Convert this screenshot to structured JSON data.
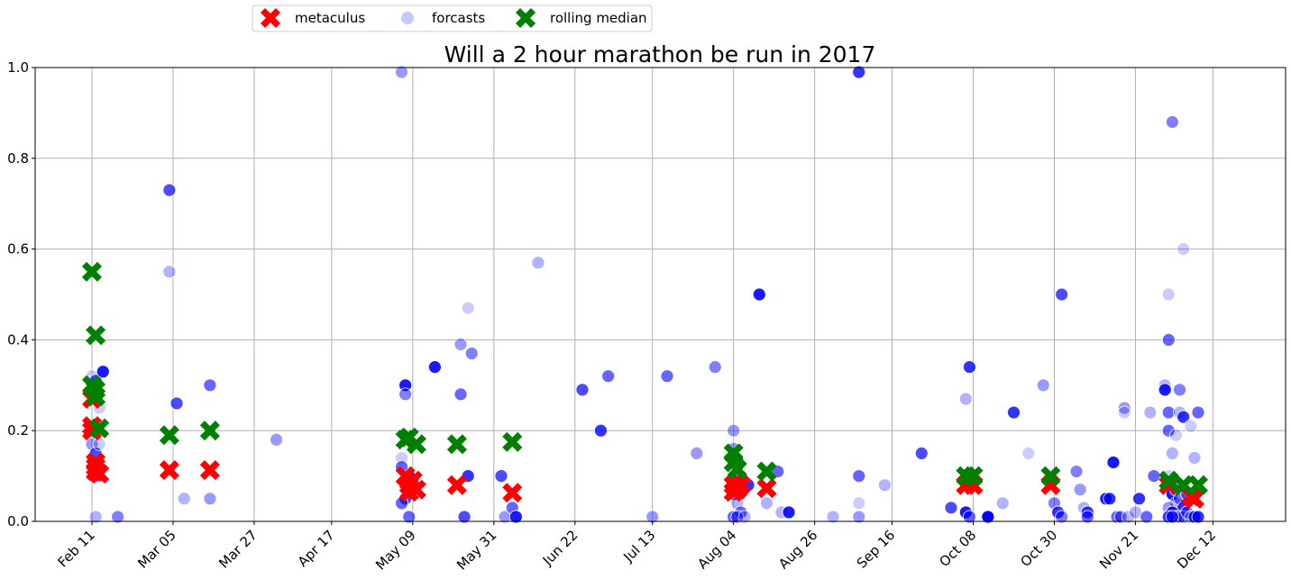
{
  "chart_data": {
    "type": "scatter",
    "title": "Will a 2 hour marathon be run in 2017",
    "xlabel": "",
    "ylabel": "",
    "ylim": [
      0,
      1
    ],
    "y_ticks": [
      "0.0",
      "0.2",
      "0.4",
      "0.6",
      "0.8",
      "1.0"
    ],
    "x_ticks": [
      "Feb 11",
      "Mar 05",
      "Mar 27",
      "Apr 17",
      "May 09",
      "May 31",
      "Jun 22",
      "Jul 13",
      "Aug 04",
      "Aug 26",
      "Sep 16",
      "Oct 08",
      "Oct 30",
      "Nov 21",
      "Dec 12"
    ],
    "grid": true,
    "legend_position": "top-left, above plot",
    "colors": {
      "metaculus": "#ff0000",
      "forecast": "#0000ff",
      "rolling_median": "#008000"
    },
    "legend": [
      {
        "label": "metaculus",
        "marker": "x"
      },
      {
        "label": "forcasts",
        "marker": "circle"
      },
      {
        "label": "rolling median",
        "marker": "x"
      }
    ],
    "series": {
      "metaculus": [
        {
          "x": "Feb 11",
          "y": 0.27
        },
        {
          "x": "Feb 11",
          "y": 0.21
        },
        {
          "x": "Feb 11",
          "y": 0.2
        },
        {
          "x": "Feb 12",
          "y": 0.12
        },
        {
          "x": "Feb 12",
          "y": 0.11
        },
        {
          "x": "Feb 12",
          "y": 0.13
        },
        {
          "x": "Feb 13",
          "y": 0.105
        },
        {
          "x": "Mar 04",
          "y": 0.113
        },
        {
          "x": "Mar 15",
          "y": 0.113
        },
        {
          "x": "May 07",
          "y": 0.1
        },
        {
          "x": "May 08",
          "y": 0.08
        },
        {
          "x": "May 08",
          "y": 0.065
        },
        {
          "x": "May 09",
          "y": 0.09
        },
        {
          "x": "May 10",
          "y": 0.07
        },
        {
          "x": "May 21",
          "y": 0.08
        },
        {
          "x": "Jun 05",
          "y": 0.063
        },
        {
          "x": "Aug 04",
          "y": 0.08
        },
        {
          "x": "Aug 04",
          "y": 0.065
        },
        {
          "x": "Aug 05",
          "y": 0.07
        },
        {
          "x": "Aug 06",
          "y": 0.08
        },
        {
          "x": "Aug 13",
          "y": 0.073
        },
        {
          "x": "Oct 06",
          "y": 0.08
        },
        {
          "x": "Oct 08",
          "y": 0.08
        },
        {
          "x": "Oct 29",
          "y": 0.08
        },
        {
          "x": "Nov 30",
          "y": 0.08
        },
        {
          "x": "Dec 06",
          "y": 0.055
        },
        {
          "x": "Dec 07",
          "y": 0.05
        }
      ],
      "rolling_median": [
        {
          "x": "Feb 11",
          "y": 0.55
        },
        {
          "x": "Feb 12",
          "y": 0.41
        },
        {
          "x": "Feb 11",
          "y": 0.3
        },
        {
          "x": "Feb 12",
          "y": 0.29
        },
        {
          "x": "Feb 12",
          "y": 0.275
        },
        {
          "x": "Feb 13",
          "y": 0.205
        },
        {
          "x": "Mar 04",
          "y": 0.19
        },
        {
          "x": "Mar 15",
          "y": 0.2
        },
        {
          "x": "May 07",
          "y": 0.18
        },
        {
          "x": "May 08",
          "y": 0.185
        },
        {
          "x": "May 10",
          "y": 0.17
        },
        {
          "x": "May 21",
          "y": 0.17
        },
        {
          "x": "Jun 05",
          "y": 0.175
        },
        {
          "x": "Aug 04",
          "y": 0.15
        },
        {
          "x": "Aug 04",
          "y": 0.13
        },
        {
          "x": "Aug 05",
          "y": 0.115
        },
        {
          "x": "Aug 13",
          "y": 0.11
        },
        {
          "x": "Oct 06",
          "y": 0.1
        },
        {
          "x": "Oct 08",
          "y": 0.1
        },
        {
          "x": "Oct 29",
          "y": 0.1
        },
        {
          "x": "Nov 30",
          "y": 0.09
        },
        {
          "x": "Dec 04",
          "y": 0.08
        },
        {
          "x": "Dec 08",
          "y": 0.08
        }
      ],
      "forecasts": [
        {
          "x": "Feb 11",
          "y": 0.32
        },
        {
          "x": "Feb 12",
          "y": 0.31
        },
        {
          "x": "Feb 13",
          "y": 0.25
        },
        {
          "x": "Feb 14",
          "y": 0.33
        },
        {
          "x": "Feb 11",
          "y": 0.17
        },
        {
          "x": "Feb 12",
          "y": 0.15
        },
        {
          "x": "Feb 13",
          "y": 0.17
        },
        {
          "x": "Feb 12",
          "y": 0.1
        },
        {
          "x": "Feb 13",
          "y": 0.1
        },
        {
          "x": "Feb 12",
          "y": 0.01
        },
        {
          "x": "Feb 18",
          "y": 0.01
        },
        {
          "x": "Mar 04",
          "y": 0.73
        },
        {
          "x": "Mar 04",
          "y": 0.55
        },
        {
          "x": "Mar 06",
          "y": 0.26
        },
        {
          "x": "Mar 08",
          "y": 0.05
        },
        {
          "x": "Mar 15",
          "y": 0.05
        },
        {
          "x": "Mar 15",
          "y": 0.3
        },
        {
          "x": "Apr 02",
          "y": 0.18
        },
        {
          "x": "May 06",
          "y": 0.99
        },
        {
          "x": "May 07",
          "y": 0.3
        },
        {
          "x": "May 07",
          "y": 0.28
        },
        {
          "x": "May 06",
          "y": 0.14
        },
        {
          "x": "May 06",
          "y": 0.12
        },
        {
          "x": "May 08",
          "y": 0.1
        },
        {
          "x": "May 09",
          "y": 0.08
        },
        {
          "x": "May 07",
          "y": 0.05
        },
        {
          "x": "May 06",
          "y": 0.04
        },
        {
          "x": "May 08",
          "y": 0.01
        },
        {
          "x": "May 15",
          "y": 0.34
        },
        {
          "x": "May 22",
          "y": 0.39
        },
        {
          "x": "May 22",
          "y": 0.28
        },
        {
          "x": "May 24",
          "y": 0.47
        },
        {
          "x": "May 25",
          "y": 0.37
        },
        {
          "x": "May 24",
          "y": 0.1
        },
        {
          "x": "May 23",
          "y": 0.01
        },
        {
          "x": "Jun 02",
          "y": 0.1
        },
        {
          "x": "Jun 03",
          "y": 0.01
        },
        {
          "x": "Jun 05",
          "y": 0.03
        },
        {
          "x": "Jun 06",
          "y": 0.01
        },
        {
          "x": "Jun 12",
          "y": 0.57
        },
        {
          "x": "Jun 24",
          "y": 0.29
        },
        {
          "x": "Jun 29",
          "y": 0.2
        },
        {
          "x": "Jul 01",
          "y": 0.32
        },
        {
          "x": "Jul 13",
          "y": 0.01
        },
        {
          "x": "Jul 17",
          "y": 0.32
        },
        {
          "x": "Jul 25",
          "y": 0.15
        },
        {
          "x": "Jul 30",
          "y": 0.34
        },
        {
          "x": "Aug 04",
          "y": 0.2
        },
        {
          "x": "Aug 04",
          "y": 0.16
        },
        {
          "x": "Aug 05",
          "y": 0.12
        },
        {
          "x": "Aug 06",
          "y": 0.1
        },
        {
          "x": "Aug 04",
          "y": 0.06
        },
        {
          "x": "Aug 05",
          "y": 0.04
        },
        {
          "x": "Aug 06",
          "y": 0.02
        },
        {
          "x": "Aug 04",
          "y": 0.01
        },
        {
          "x": "Aug 05",
          "y": 0.01
        },
        {
          "x": "Aug 07",
          "y": 0.01
        },
        {
          "x": "Aug 08",
          "y": 0.08
        },
        {
          "x": "Aug 11",
          "y": 0.5
        },
        {
          "x": "Aug 13",
          "y": 0.04
        },
        {
          "x": "Aug 16",
          "y": 0.11
        },
        {
          "x": "Aug 17",
          "y": 0.02
        },
        {
          "x": "Aug 19",
          "y": 0.02
        },
        {
          "x": "Aug 31",
          "y": 0.01
        },
        {
          "x": "Sep 07",
          "y": 0.99
        },
        {
          "x": "Sep 07",
          "y": 0.1
        },
        {
          "x": "Sep 07",
          "y": 0.04
        },
        {
          "x": "Sep 07",
          "y": 0.01
        },
        {
          "x": "Sep 14",
          "y": 0.08
        },
        {
          "x": "Sep 24",
          "y": 0.15
        },
        {
          "x": "Oct 02",
          "y": 0.03
        },
        {
          "x": "Oct 06",
          "y": 0.27
        },
        {
          "x": "Oct 07",
          "y": 0.34
        },
        {
          "x": "Oct 06",
          "y": 0.02
        },
        {
          "x": "Oct 07",
          "y": 0.01
        },
        {
          "x": "Oct 12",
          "y": 0.01
        },
        {
          "x": "Oct 12",
          "y": 0.01
        },
        {
          "x": "Oct 16",
          "y": 0.04
        },
        {
          "x": "Oct 19",
          "y": 0.24
        },
        {
          "x": "Oct 23",
          "y": 0.15
        },
        {
          "x": "Oct 27",
          "y": 0.3
        },
        {
          "x": "Oct 30",
          "y": 0.04
        },
        {
          "x": "Oct 31",
          "y": 0.02
        },
        {
          "x": "Nov 01",
          "y": 0.5
        },
        {
          "x": "Nov 01",
          "y": 0.01
        },
        {
          "x": "Nov 05",
          "y": 0.11
        },
        {
          "x": "Nov 06",
          "y": 0.07
        },
        {
          "x": "Nov 07",
          "y": 0.03
        },
        {
          "x": "Nov 08",
          "y": 0.02
        },
        {
          "x": "Nov 08",
          "y": 0.01
        },
        {
          "x": "Nov 13",
          "y": 0.05
        },
        {
          "x": "Nov 14",
          "y": 0.05
        },
        {
          "x": "Nov 15",
          "y": 0.13
        },
        {
          "x": "Nov 15",
          "y": 0.13
        },
        {
          "x": "Nov 16",
          "y": 0.01
        },
        {
          "x": "Nov 17",
          "y": 0.01
        },
        {
          "x": "Nov 18",
          "y": 0.25
        },
        {
          "x": "Nov 18",
          "y": 0.24
        },
        {
          "x": "Nov 19",
          "y": 0.01
        },
        {
          "x": "Nov 21",
          "y": 0.02
        },
        {
          "x": "Nov 22",
          "y": 0.05
        },
        {
          "x": "Nov 24",
          "y": 0.01
        },
        {
          "x": "Nov 25",
          "y": 0.24
        },
        {
          "x": "Nov 26",
          "y": 0.1
        },
        {
          "x": "Nov 29",
          "y": 0.3
        },
        {
          "x": "Nov 29",
          "y": 0.29
        },
        {
          "x": "Nov 30",
          "y": 0.5
        },
        {
          "x": "Nov 30",
          "y": 0.4
        },
        {
          "x": "Nov 30",
          "y": 0.24
        },
        {
          "x": "Nov 30",
          "y": 0.2
        },
        {
          "x": "Dec 01",
          "y": 0.88
        },
        {
          "x": "Dec 01",
          "y": 0.15
        },
        {
          "x": "Dec 02",
          "y": 0.19
        },
        {
          "x": "Dec 03",
          "y": 0.29
        },
        {
          "x": "Dec 03",
          "y": 0.24
        },
        {
          "x": "Dec 04",
          "y": 0.6
        },
        {
          "x": "Dec 04",
          "y": 0.23
        },
        {
          "x": "Dec 06",
          "y": 0.21
        },
        {
          "x": "Dec 07",
          "y": 0.14
        },
        {
          "x": "Dec 08",
          "y": 0.24
        },
        {
          "x": "Nov 30",
          "y": 0.1
        },
        {
          "x": "Dec 01",
          "y": 0.09
        },
        {
          "x": "Dec 01",
          "y": 0.06
        },
        {
          "x": "Dec 02",
          "y": 0.07
        },
        {
          "x": "Dec 02",
          "y": 0.04
        },
        {
          "x": "Dec 03",
          "y": 0.05
        },
        {
          "x": "Dec 04",
          "y": 0.03
        },
        {
          "x": "Nov 30",
          "y": 0.03
        },
        {
          "x": "Dec 01",
          "y": 0.02
        },
        {
          "x": "Dec 02",
          "y": 0.01
        },
        {
          "x": "Dec 03",
          "y": 0.01
        },
        {
          "x": "Dec 04",
          "y": 0.01
        },
        {
          "x": "Dec 05",
          "y": 0.02
        },
        {
          "x": "Dec 06",
          "y": 0.01
        },
        {
          "x": "Dec 07",
          "y": 0.01
        },
        {
          "x": "Nov 30",
          "y": 0.01
        },
        {
          "x": "Dec 01",
          "y": 0.01
        },
        {
          "x": "Dec 08",
          "y": 0.01
        },
        {
          "x": "Dec 05",
          "y": 0.06
        }
      ]
    }
  }
}
